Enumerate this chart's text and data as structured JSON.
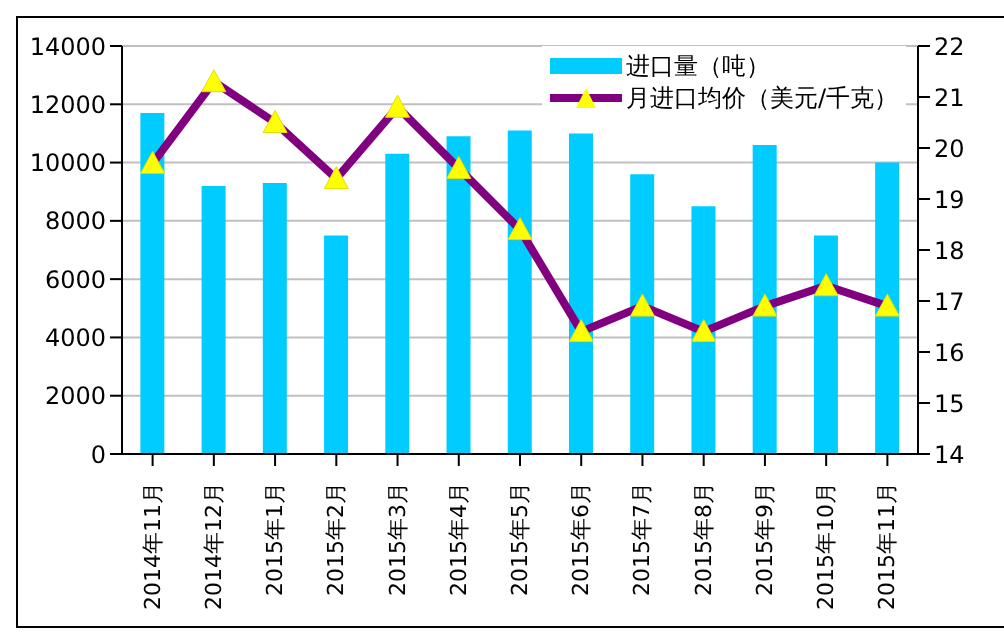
{
  "chart_data": {
    "type": "bar",
    "categories": [
      "2014年11月",
      "2014年12月",
      "2015年1月",
      "2015年2月",
      "2015年3月",
      "2015年4月",
      "2015年5月",
      "2015年6月",
      "2015年7月",
      "2015年8月",
      "2015年9月",
      "2015年10月",
      "2015年11月"
    ],
    "series": [
      {
        "name": "进口量（吨）",
        "color": "#00ccff",
        "values": [
          11700,
          9200,
          9300,
          7500,
          10300,
          10900,
          11100,
          11000,
          9600,
          8500,
          10600,
          7500,
          10000
        ]
      },
      {
        "name": "月进口均价（美元/千克）",
        "type": "line",
        "axis": "y2",
        "color": "#800080",
        "marker": "triangle",
        "values": [
          19.7,
          21.3,
          20.5,
          19.4,
          20.8,
          19.6,
          18.4,
          16.4,
          16.9,
          16.4,
          16.9,
          17.3,
          16.9
        ]
      }
    ],
    "ylim": [
      0,
      14000
    ],
    "yticks": [
      0,
      2000,
      4000,
      6000,
      8000,
      10000,
      12000,
      14000
    ],
    "y2lim": [
      14,
      22
    ],
    "y2ticks": [
      14,
      15,
      16,
      17,
      18,
      19,
      20,
      21,
      22
    ],
    "grid": "y",
    "legend": "top right"
  }
}
